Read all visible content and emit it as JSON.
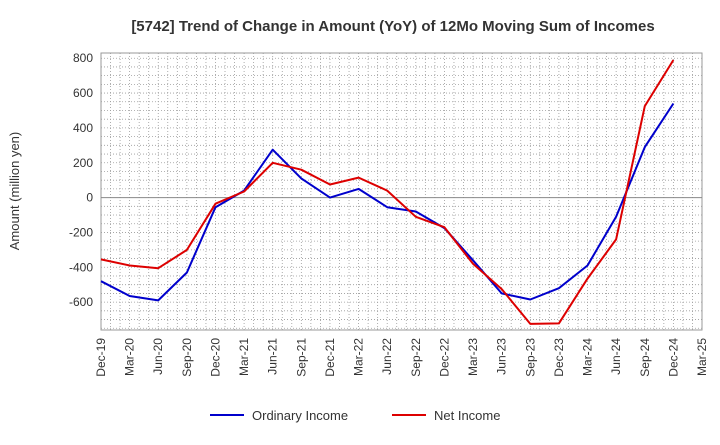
{
  "chart_data": {
    "type": "line",
    "title": "[5742]  Trend of Change in Amount (YoY) of 12Mo Moving Sum of Incomes",
    "xlabel": "",
    "ylabel": "Amount (million yen)",
    "ylim": [
      -760,
      830
    ],
    "yticks": [
      800,
      600,
      400,
      200,
      0,
      -200,
      -400,
      -600
    ],
    "categories": [
      "Dec-19",
      "Mar-20",
      "Jun-20",
      "Sep-20",
      "Dec-20",
      "Mar-21",
      "Jun-21",
      "Sep-21",
      "Dec-21",
      "Mar-22",
      "Jun-22",
      "Sep-22",
      "Dec-22",
      "Mar-23",
      "Jun-23",
      "Sep-23",
      "Dec-23",
      "Mar-24",
      "Jun-24",
      "Sep-24",
      "Dec-24",
      "Mar-25"
    ],
    "grid": true,
    "legend_position": "bottom",
    "series": [
      {
        "name": "Ordinary Income",
        "color": "#0000cc",
        "values": [
          -480,
          -565,
          -590,
          -430,
          -55,
          40,
          275,
          110,
          0,
          50,
          -55,
          -80,
          -175,
          -360,
          -550,
          -585,
          -520,
          -390,
          -110,
          290,
          540,
          null
        ]
      },
      {
        "name": "Net Income",
        "color": "#dd0000",
        "values": [
          -355,
          -390,
          -405,
          -300,
          -35,
          35,
          200,
          160,
          75,
          115,
          40,
          -110,
          -170,
          -380,
          -525,
          -725,
          -722,
          -465,
          -240,
          525,
          790,
          null
        ]
      }
    ]
  }
}
